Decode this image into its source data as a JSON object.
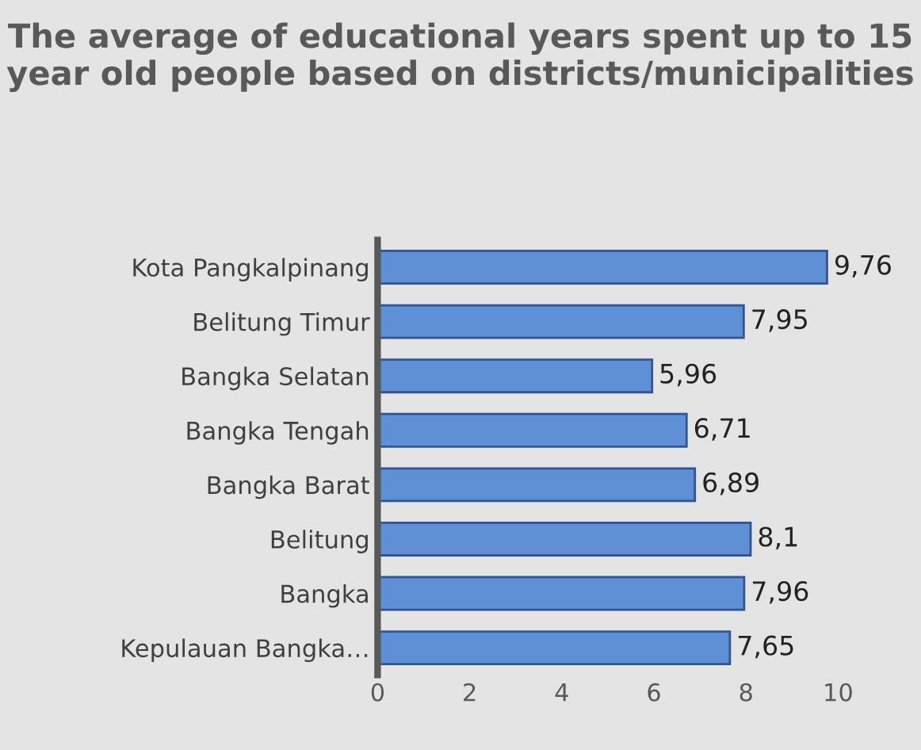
{
  "chart_data": {
    "type": "bar",
    "orientation": "horizontal",
    "title": "The average of educational years spent up to 15 year old people based on districts/municipalities",
    "categories": [
      "Kota Pangkalpinang",
      "Belitung Timur",
      "Bangka Selatan",
      "Bangka Tengah",
      "Bangka Barat",
      "Belitung",
      "Bangka",
      "Kepulauan Bangka…"
    ],
    "values": [
      9.76,
      7.95,
      5.96,
      6.71,
      6.89,
      8.1,
      7.96,
      7.65
    ],
    "value_labels": [
      "9,76",
      "7,95",
      "5,96",
      "6,71",
      "6,89",
      "8,1",
      "7,96",
      "7,65"
    ],
    "color": "#5f8fd4",
    "xlim": [
      0,
      10
    ],
    "xticks": [
      0,
      2,
      4,
      6,
      8,
      10
    ],
    "grid": false,
    "legend": false
  }
}
